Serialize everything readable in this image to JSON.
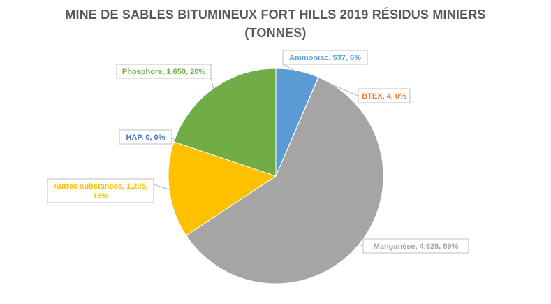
{
  "chart_data": {
    "type": "pie",
    "title_line1": "MINE DE SABLES BITUMINEUX FORT HILLS 2019 RÉSIDUS MINIERS",
    "title_line2": "(TONNES)",
    "slices": [
      {
        "name": "Ammoniac",
        "value": 537,
        "value_text": "537",
        "percent": "6%",
        "color": "#5B9BD5",
        "label_color": "#5B9BD5"
      },
      {
        "name": "BTEX",
        "value": 4,
        "value_text": "4",
        "percent": "0%",
        "color": "#ED7D31",
        "label_color": "#ED7D31"
      },
      {
        "name": "Manganèse",
        "value": 4925,
        "value_text": "4,925",
        "percent": "59%",
        "color": "#A5A5A5",
        "label_color": "#A5A5A5"
      },
      {
        "name": "Autres substances",
        "value": 1205,
        "value_text": "1,205",
        "percent": "15%",
        "color": "#FFC000",
        "label_color": "#FFC000"
      },
      {
        "name": "HAP",
        "value": 0,
        "value_text": "0",
        "percent": "0%",
        "color": "#4472C4",
        "label_color": "#4472C4"
      },
      {
        "name": "Phosphore",
        "value": 1650,
        "value_text": "1,650",
        "percent": "20%",
        "color": "#70AD47",
        "label_color": "#70AD47"
      }
    ],
    "label_format": "{name}, {value}, {percent}",
    "legend": "none"
  }
}
